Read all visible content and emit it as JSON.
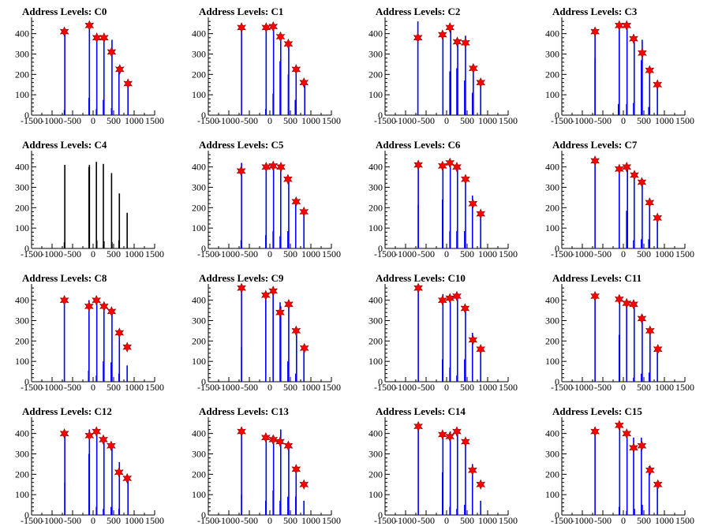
{
  "figure": {
    "panels": [
      {
        "title": "Address Levels: C0",
        "bar_color": "#0000ff",
        "bars": [
          [
            -700,
            25
          ],
          [
            -690,
            410
          ],
          [
            -100,
            85
          ],
          [
            -90,
            440
          ],
          [
            80,
            30
          ],
          [
            90,
            380
          ],
          [
            250,
            75
          ],
          [
            265,
            380
          ],
          [
            450,
            35
          ],
          [
            460,
            370
          ],
          [
            630,
            240
          ],
          [
            850,
            150
          ]
        ],
        "peaks": [
          [
            -700,
            410
          ],
          [
            -90,
            440
          ],
          [
            90,
            380
          ],
          [
            265,
            380
          ],
          [
            450,
            310
          ],
          [
            650,
            225
          ],
          [
            850,
            155
          ]
        ]
      },
      {
        "title": "Address Levels: C1",
        "bar_color": "#0000ff",
        "bars": [
          [
            -690,
            440
          ],
          [
            -100,
            30
          ],
          [
            -90,
            430
          ],
          [
            80,
            105
          ],
          [
            90,
            440
          ],
          [
            250,
            265
          ],
          [
            265,
            380
          ],
          [
            450,
            200
          ],
          [
            460,
            360
          ],
          [
            620,
            75
          ],
          [
            640,
            240
          ],
          [
            850,
            160
          ]
        ],
        "peaks": [
          [
            -690,
            430
          ],
          [
            -90,
            430
          ],
          [
            80,
            435
          ],
          [
            260,
            385
          ],
          [
            450,
            350
          ],
          [
            640,
            225
          ],
          [
            830,
            160
          ]
        ]
      },
      {
        "title": "Address Levels: C2",
        "bar_color": "#0000ff",
        "bars": [
          [
            -700,
            460
          ],
          [
            -90,
            410
          ],
          [
            80,
            215
          ],
          [
            100,
            440
          ],
          [
            250,
            230
          ],
          [
            270,
            370
          ],
          [
            440,
            170
          ],
          [
            460,
            390
          ],
          [
            630,
            110
          ],
          [
            650,
            240
          ],
          [
            830,
            170
          ]
        ],
        "peaks": [
          [
            -700,
            380
          ],
          [
            -100,
            395
          ],
          [
            80,
            430
          ],
          [
            260,
            360
          ],
          [
            460,
            355
          ],
          [
            650,
            230
          ],
          [
            830,
            160
          ]
        ]
      },
      {
        "title": "Address Levels: C3",
        "bar_color": "#0000ff",
        "bars": [
          [
            -690,
            280
          ],
          [
            -690,
            430
          ],
          [
            -120,
            55
          ],
          [
            -100,
            450
          ],
          [
            80,
            55
          ],
          [
            90,
            450
          ],
          [
            250,
            60
          ],
          [
            265,
            370
          ],
          [
            440,
            270
          ],
          [
            460,
            370
          ],
          [
            620,
            40
          ],
          [
            640,
            240
          ],
          [
            830,
            140
          ]
        ],
        "peaks": [
          [
            -690,
            410
          ],
          [
            -100,
            440
          ],
          [
            80,
            440
          ],
          [
            250,
            375
          ],
          [
            460,
            305
          ],
          [
            640,
            220
          ],
          [
            830,
            150
          ]
        ]
      },
      {
        "title": "Address Levels: C4",
        "bar_color": "#000000",
        "bars": [
          [
            -700,
            30
          ],
          [
            -690,
            410
          ],
          [
            -100,
            400
          ],
          [
            -90,
            410
          ],
          [
            80,
            425
          ],
          [
            90,
            40
          ],
          [
            250,
            415
          ],
          [
            265,
            35
          ],
          [
            450,
            370
          ],
          [
            460,
            30
          ],
          [
            630,
            40
          ],
          [
            640,
            270
          ],
          [
            830,
            175
          ]
        ],
        "peaks": []
      },
      {
        "title": "Address Levels: C5",
        "bar_color": "#0000ff",
        "bars": [
          [
            -700,
            40
          ],
          [
            -690,
            420
          ],
          [
            -100,
            65
          ],
          [
            -90,
            410
          ],
          [
            80,
            85
          ],
          [
            90,
            415
          ],
          [
            250,
            60
          ],
          [
            265,
            390
          ],
          [
            440,
            85
          ],
          [
            460,
            350
          ],
          [
            630,
            240
          ],
          [
            830,
            190
          ]
        ],
        "peaks": [
          [
            -700,
            380
          ],
          [
            -90,
            400
          ],
          [
            80,
            405
          ],
          [
            270,
            400
          ],
          [
            440,
            340
          ],
          [
            640,
            230
          ],
          [
            830,
            180
          ]
        ]
      },
      {
        "title": "Address Levels: C6",
        "bar_color": "#0000ff",
        "bars": [
          [
            -690,
            215
          ],
          [
            -690,
            420
          ],
          [
            -100,
            240
          ],
          [
            -90,
            420
          ],
          [
            80,
            85
          ],
          [
            90,
            415
          ],
          [
            250,
            85
          ],
          [
            265,
            390
          ],
          [
            440,
            85
          ],
          [
            460,
            350
          ],
          [
            630,
            260
          ],
          [
            830,
            170
          ]
        ],
        "peaks": [
          [
            -690,
            410
          ],
          [
            -100,
            405
          ],
          [
            80,
            420
          ],
          [
            250,
            400
          ],
          [
            460,
            340
          ],
          [
            640,
            220
          ],
          [
            830,
            170
          ]
        ]
      },
      {
        "title": "Address Levels: C7",
        "bar_color": "#0000ff",
        "bars": [
          [
            -690,
            450
          ],
          [
            -100,
            390
          ],
          [
            80,
            185
          ],
          [
            100,
            400
          ],
          [
            250,
            40
          ],
          [
            265,
            360
          ],
          [
            440,
            45
          ],
          [
            460,
            340
          ],
          [
            620,
            45
          ],
          [
            640,
            240
          ],
          [
            830,
            140
          ]
        ],
        "peaks": [
          [
            -690,
            430
          ],
          [
            -100,
            390
          ],
          [
            80,
            400
          ],
          [
            270,
            360
          ],
          [
            450,
            325
          ],
          [
            640,
            225
          ],
          [
            830,
            150
          ]
        ]
      },
      {
        "title": "Address Levels: C8",
        "bar_color": "#0000ff",
        "bars": [
          [
            -700,
            420
          ],
          [
            -110,
            55
          ],
          [
            -100,
            400
          ],
          [
            80,
            30
          ],
          [
            90,
            410
          ],
          [
            250,
            100
          ],
          [
            265,
            380
          ],
          [
            440,
            95
          ],
          [
            460,
            350
          ],
          [
            630,
            40
          ],
          [
            640,
            245
          ],
          [
            830,
            80
          ]
        ],
        "peaks": [
          [
            -700,
            400
          ],
          [
            -100,
            370
          ],
          [
            80,
            400
          ],
          [
            265,
            370
          ],
          [
            450,
            345
          ],
          [
            640,
            240
          ],
          [
            830,
            170
          ]
        ]
      },
      {
        "title": "Address Levels: C9",
        "bar_color": "#0000ff",
        "bars": [
          [
            -690,
            170
          ],
          [
            -690,
            470
          ],
          [
            -100,
            420
          ],
          [
            80,
            440
          ],
          [
            250,
            390
          ],
          [
            265,
            370
          ],
          [
            440,
            100
          ],
          [
            460,
            380
          ],
          [
            630,
            40
          ],
          [
            650,
            250
          ],
          [
            830,
            160
          ]
        ],
        "peaks": [
          [
            -690,
            460
          ],
          [
            -100,
            425
          ],
          [
            80,
            445
          ],
          [
            250,
            340
          ],
          [
            460,
            380
          ],
          [
            640,
            250
          ],
          [
            840,
            165
          ]
        ]
      },
      {
        "title": "Address Levels: C10",
        "bar_color": "#0000ff",
        "bars": [
          [
            -690,
            470
          ],
          [
            -100,
            110
          ],
          [
            -90,
            430
          ],
          [
            80,
            70
          ],
          [
            90,
            420
          ],
          [
            250,
            30
          ],
          [
            265,
            420
          ],
          [
            440,
            110
          ],
          [
            460,
            360
          ],
          [
            630,
            240
          ],
          [
            830,
            160
          ]
        ],
        "peaks": [
          [
            -690,
            460
          ],
          [
            -100,
            400
          ],
          [
            80,
            410
          ],
          [
            250,
            420
          ],
          [
            450,
            360
          ],
          [
            640,
            205
          ],
          [
            830,
            160
          ]
        ]
      },
      {
        "title": "Address Levels: C11",
        "bar_color": "#0000ff",
        "bars": [
          [
            -690,
            430
          ],
          [
            -100,
            230
          ],
          [
            -90,
            410
          ],
          [
            80,
            400
          ],
          [
            250,
            20
          ],
          [
            265,
            380
          ],
          [
            440,
            40
          ],
          [
            460,
            330
          ],
          [
            630,
            45
          ],
          [
            650,
            245
          ],
          [
            830,
            170
          ]
        ],
        "peaks": [
          [
            -690,
            420
          ],
          [
            -100,
            405
          ],
          [
            80,
            385
          ],
          [
            250,
            380
          ],
          [
            450,
            310
          ],
          [
            650,
            250
          ],
          [
            840,
            160
          ]
        ]
      },
      {
        "title": "Address Levels: C12",
        "bar_color": "#0000ff",
        "bars": [
          [
            -690,
            160
          ],
          [
            -690,
            410
          ],
          [
            -100,
            300
          ],
          [
            -90,
            420
          ],
          [
            80,
            40
          ],
          [
            90,
            420
          ],
          [
            250,
            30
          ],
          [
            265,
            370
          ],
          [
            440,
            40
          ],
          [
            460,
            350
          ],
          [
            630,
            30
          ],
          [
            640,
            260
          ],
          [
            850,
            180
          ]
        ],
        "peaks": [
          [
            -700,
            400
          ],
          [
            -90,
            390
          ],
          [
            80,
            410
          ],
          [
            250,
            370
          ],
          [
            440,
            340
          ],
          [
            630,
            210
          ],
          [
            830,
            180
          ]
        ]
      },
      {
        "title": "Address Levels: C13",
        "bar_color": "#0000ff",
        "bars": [
          [
            -690,
            100
          ],
          [
            -690,
            430
          ],
          [
            -100,
            70
          ],
          [
            -90,
            400
          ],
          [
            80,
            120
          ],
          [
            90,
            390
          ],
          [
            250,
            70
          ],
          [
            265,
            420
          ],
          [
            440,
            90
          ],
          [
            460,
            350
          ],
          [
            630,
            90
          ],
          [
            640,
            240
          ],
          [
            830,
            70
          ]
        ],
        "peaks": [
          [
            -690,
            410
          ],
          [
            -100,
            380
          ],
          [
            80,
            370
          ],
          [
            250,
            360
          ],
          [
            450,
            340
          ],
          [
            640,
            225
          ],
          [
            830,
            150
          ]
        ]
      },
      {
        "title": "Address Levels: C14",
        "bar_color": "#0000ff",
        "bars": [
          [
            -690,
            440
          ],
          [
            -100,
            210
          ],
          [
            -90,
            400
          ],
          [
            80,
            40
          ],
          [
            90,
            410
          ],
          [
            250,
            30
          ],
          [
            265,
            420
          ],
          [
            440,
            50
          ],
          [
            460,
            370
          ],
          [
            630,
            250
          ],
          [
            830,
            70
          ]
        ],
        "peaks": [
          [
            -690,
            435
          ],
          [
            -100,
            395
          ],
          [
            80,
            385
          ],
          [
            250,
            410
          ],
          [
            460,
            360
          ],
          [
            630,
            220
          ],
          [
            830,
            150
          ]
        ]
      },
      {
        "title": "Address Levels: C15",
        "bar_color": "#0000ff",
        "bars": [
          [
            -690,
            430
          ],
          [
            -100,
            40
          ],
          [
            -90,
            440
          ],
          [
            80,
            20
          ],
          [
            90,
            400
          ],
          [
            250,
            380
          ],
          [
            270,
            30
          ],
          [
            440,
            380
          ],
          [
            460,
            50
          ],
          [
            630,
            240
          ],
          [
            830,
            150
          ]
        ],
        "peaks": [
          [
            -690,
            410
          ],
          [
            -100,
            440
          ],
          [
            80,
            400
          ],
          [
            250,
            330
          ],
          [
            450,
            340
          ],
          [
            650,
            220
          ],
          [
            840,
            150
          ]
        ]
      }
    ]
  },
  "chart_data": {
    "type": "bar",
    "description_note": "",
    "xlim": [
      -1500,
      1500
    ],
    "ylim": [
      0,
      480
    ],
    "x_ticks": [
      -1500,
      -1000,
      -500,
      0,
      500,
      1000,
      1500
    ],
    "y_ticks": [
      0,
      100,
      200,
      300,
      400
    ],
    "marker_color": "#ff0000",
    "grid": false
  },
  "colors": {
    "blue_bars": "#0000ff",
    "black_bars": "#000000",
    "star": "#ff0000",
    "axes": "#000000"
  }
}
